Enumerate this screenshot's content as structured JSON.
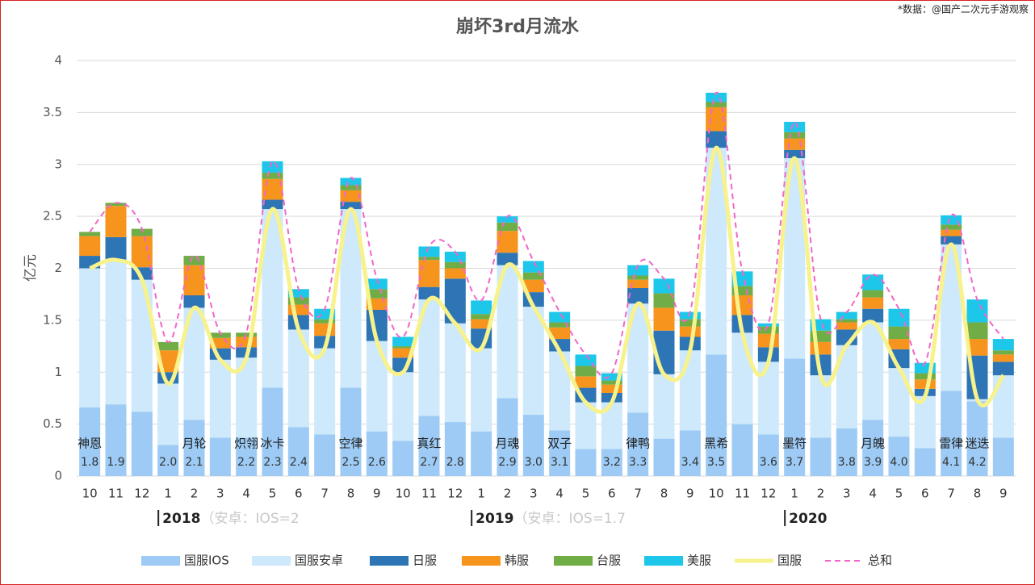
{
  "chart_data": {
    "type": "bar",
    "title": "崩坏3rd月流水",
    "source": "*数据：@国产二次元手游观察",
    "y_label": "亿元",
    "categories": [
      "10",
      "11",
      "12",
      "1",
      "2",
      "3",
      "4",
      "5",
      "6",
      "7",
      "8",
      "9",
      "10",
      "11",
      "12",
      "1",
      "2",
      "3",
      "4",
      "5",
      "6",
      "7",
      "8",
      "9",
      "10",
      "11",
      "12",
      "1",
      "2",
      "3",
      "4",
      "5",
      "6",
      "7",
      "8",
      "9"
    ],
    "years": [
      null,
      null,
      null,
      "2018",
      null,
      null,
      null,
      null,
      null,
      null,
      null,
      null,
      null,
      null,
      null,
      "2019",
      null,
      null,
      null,
      null,
      null,
      null,
      null,
      null,
      null,
      null,
      null,
      "2020",
      null,
      null,
      null,
      null,
      null,
      null,
      null,
      null
    ],
    "year_notes": [
      null,
      null,
      null,
      "（安卓：IOS=2",
      null,
      null,
      null,
      null,
      null,
      null,
      null,
      null,
      null,
      null,
      null,
      "（安卓：IOS=1.7",
      null,
      null,
      null,
      null,
      null,
      null,
      null,
      null,
      null,
      null,
      null,
      null,
      null,
      null,
      null,
      null,
      null,
      null,
      null,
      null
    ],
    "version_names": [
      "神恩",
      null,
      null,
      null,
      "月轮",
      null,
      "炽翎",
      "冰卡",
      null,
      null,
      "空律",
      null,
      null,
      "真红",
      null,
      null,
      "月魂",
      null,
      "双子",
      null,
      null,
      "律鸭",
      null,
      null,
      "黑希",
      null,
      null,
      "墨符",
      null,
      null,
      "月魄",
      null,
      null,
      "雷律",
      "迷迭",
      null
    ],
    "versions": [
      "1.8",
      "1.9",
      null,
      "2.0",
      "2.1",
      null,
      "2.2",
      "2.3",
      "2.4",
      null,
      "2.5",
      "2.6",
      null,
      "2.7",
      "2.8",
      null,
      "2.9",
      "3.0",
      "3.1",
      null,
      "3.2",
      "3.3",
      null,
      "3.4",
      "3.5",
      null,
      "3.6",
      "3.7",
      null,
      "3.8",
      "3.9",
      "4.0",
      null,
      "4.1",
      "4.2",
      null
    ],
    "ylim": [
      0,
      4
    ],
    "yticks": [
      0,
      0.5,
      1,
      1.5,
      2,
      2.5,
      3,
      3.5,
      4
    ],
    "grid": true,
    "legend": "bottom",
    "series": [
      {
        "name": "国服IOS",
        "type": "bar",
        "color": "#9dcbf5",
        "values": [
          0.66,
          0.69,
          0.62,
          0.3,
          0.54,
          0.37,
          0.37,
          0.85,
          0.47,
          0.4,
          0.85,
          0.43,
          0.34,
          0.58,
          0.52,
          0.43,
          0.75,
          0.59,
          0.44,
          0.26,
          0.26,
          0.61,
          0.36,
          0.44,
          1.17,
          0.5,
          0.4,
          1.13,
          0.37,
          0.46,
          0.54,
          0.38,
          0.27,
          0.82,
          0.72,
          0.37
        ]
      },
      {
        "name": "国服安卓",
        "type": "bar",
        "color": "#cde9fb",
        "values": [
          1.34,
          1.39,
          1.27,
          0.59,
          1.08,
          0.75,
          0.77,
          1.72,
          0.94,
          0.83,
          1.72,
          0.87,
          0.66,
          1.12,
          0.95,
          0.8,
          1.28,
          1.04,
          0.76,
          0.45,
          0.45,
          1.05,
          0.62,
          0.77,
          1.99,
          0.88,
          0.7,
          1.93,
          0.6,
          0.8,
          0.94,
          0.66,
          0.5,
          1.41,
          0.02,
          0.6
        ]
      },
      {
        "name": "日服",
        "type": "bar",
        "color": "#2e75b6",
        "values": [
          0.12,
          0.22,
          0.12,
          0.11,
          0.12,
          0.11,
          0.1,
          0.09,
          0.14,
          0.12,
          0.07,
          0.3,
          0.14,
          0.12,
          0.43,
          0.19,
          0.12,
          0.14,
          0.12,
          0.14,
          0.09,
          0.15,
          0.42,
          0.13,
          0.16,
          0.17,
          0.14,
          0.08,
          0.2,
          0.15,
          0.13,
          0.18,
          0.07,
          0.08,
          0.42,
          0.13
        ]
      },
      {
        "name": "韩服",
        "type": "bar",
        "color": "#f7941d",
        "values": [
          0.19,
          0.3,
          0.3,
          0.21,
          0.29,
          0.1,
          0.1,
          0.2,
          0.1,
          0.12,
          0.11,
          0.11,
          0.09,
          0.26,
          0.1,
          0.09,
          0.21,
          0.12,
          0.11,
          0.11,
          0.08,
          0.08,
          0.22,
          0.1,
          0.23,
          0.19,
          0.13,
          0.11,
          0.12,
          0.07,
          0.11,
          0.1,
          0.09,
          0.06,
          0.16,
          0.07
        ]
      },
      {
        "name": "台服",
        "type": "bar",
        "color": "#70ad47",
        "values": [
          0.04,
          0.03,
          0.07,
          0.08,
          0.09,
          0.05,
          0.04,
          0.06,
          0.07,
          0.04,
          0.05,
          0.09,
          0.02,
          0.03,
          0.06,
          0.05,
          0.08,
          0.07,
          0.05,
          0.1,
          0.04,
          0.04,
          0.14,
          0.07,
          0.05,
          0.09,
          0.07,
          0.06,
          0.11,
          0.03,
          0.07,
          0.12,
          0.06,
          0.05,
          0.16,
          0.04
        ]
      },
      {
        "name": "美服",
        "type": "bar",
        "color": "#1cc7ea",
        "values": [
          0,
          0,
          0,
          0,
          0,
          0,
          0,
          0.11,
          0.08,
          0.1,
          0.07,
          0.1,
          0.09,
          0.1,
          0.1,
          0.13,
          0.06,
          0.11,
          0.1,
          0.11,
          0.07,
          0.1,
          0.14,
          0.07,
          0.09,
          0.14,
          0.03,
          0.1,
          0.11,
          0.07,
          0.15,
          0.17,
          0.1,
          0.09,
          0.22,
          0.11
        ]
      },
      {
        "name": "国服",
        "type": "line",
        "color": "#f7f28c",
        "values": [
          2.0,
          2.08,
          1.89,
          0.89,
          1.62,
          1.12,
          1.14,
          2.57,
          1.41,
          1.23,
          2.57,
          1.3,
          1.0,
          1.7,
          1.47,
          1.23,
          2.03,
          1.63,
          1.2,
          0.71,
          0.71,
          1.66,
          0.98,
          1.21,
          3.16,
          1.38,
          1.1,
          3.06,
          0.97,
          1.26,
          1.48,
          1.04,
          0.77,
          2.23,
          0.74,
          0.97
        ]
      },
      {
        "name": "总和",
        "type": "line",
        "dash": true,
        "color": "#f266c9",
        "values": [
          2.35,
          2.63,
          2.38,
          1.29,
          2.12,
          1.38,
          1.38,
          3.03,
          1.8,
          1.61,
          2.87,
          1.9,
          1.34,
          2.21,
          2.16,
          1.69,
          2.5,
          2.07,
          1.58,
          1.17,
          0.99,
          2.03,
          1.9,
          1.58,
          3.69,
          1.97,
          1.47,
          3.41,
          1.51,
          1.58,
          1.94,
          1.61,
          1.09,
          2.51,
          1.7,
          1.32
        ]
      }
    ]
  }
}
